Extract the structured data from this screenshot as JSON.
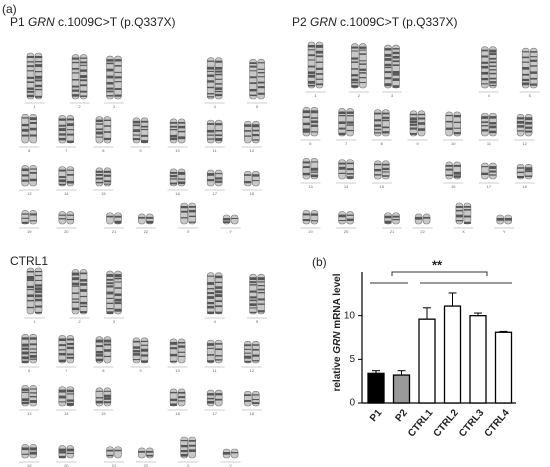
{
  "figure_label_a": "(a)",
  "figure_label_b": "(b)",
  "karyotypes": [
    {
      "title": [
        "P1 ",
        "GRN",
        "  c.1009C>T (p.Q337X)"
      ]
    },
    {
      "title": [
        "P2 ",
        "GRN",
        "  c.1009C>T (p.Q337X)"
      ]
    },
    {
      "title": [
        "CTRL1"
      ]
    }
  ],
  "chromosomes": [
    "1",
    "2",
    "3",
    "4",
    "5",
    "6",
    "7",
    "8",
    "9",
    "10",
    "11",
    "12",
    "13",
    "14",
    "15",
    "16",
    "17",
    "18",
    "19",
    "20",
    "21",
    "22",
    "X",
    "Y"
  ],
  "chart_data": {
    "type": "bar",
    "ylabel": [
      "relative ",
      "GRN",
      " mRNA level"
    ],
    "categories": [
      "P1",
      "P2",
      "CTRL1",
      "CTRL2",
      "CTRL3",
      "CTRL4"
    ],
    "values": [
      3.4,
      3.2,
      9.6,
      11.1,
      10.0,
      8.1
    ],
    "errors": [
      0.3,
      0.5,
      1.3,
      1.5,
      0.3,
      0.1
    ],
    "colors": [
      "#000000",
      "#999999",
      "#ffffff",
      "#ffffff",
      "#ffffff",
      "#ffffff"
    ],
    "ylim": [
      0,
      15
    ],
    "yticks": [
      0,
      5,
      10
    ],
    "annotation": "**"
  }
}
